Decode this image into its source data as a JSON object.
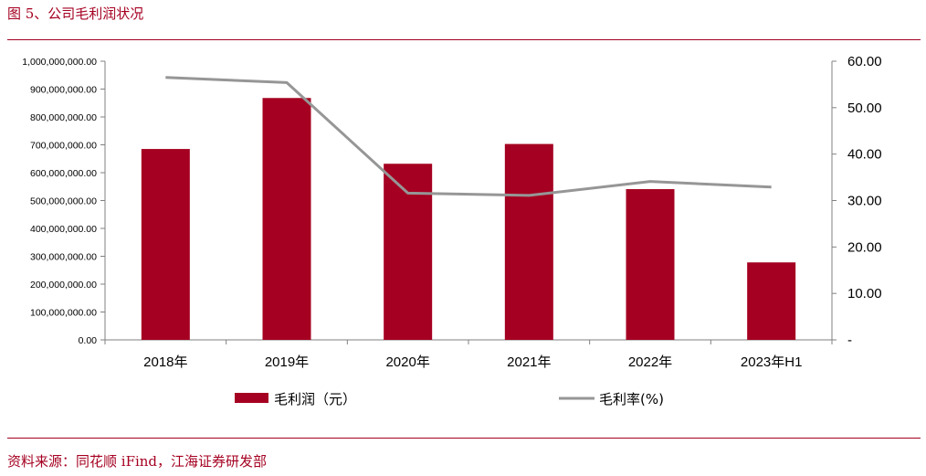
{
  "header": {
    "title": "图 5、公司毛利润状况"
  },
  "footer": {
    "source": "资料来源：同花顺 iFind，江海证券研发部"
  },
  "colors": {
    "bar": "#a50021",
    "line": "#969696",
    "accent": "#a50021",
    "axis": "#808080"
  },
  "chart_data": {
    "type": "bar+line",
    "categories": [
      "2018年",
      "2019年",
      "2020年",
      "2021年",
      "2022年",
      "2023年H1"
    ],
    "series": [
      {
        "name": "毛利润（元）",
        "type": "bar",
        "axis": "left",
        "values": [
          685000000,
          868000000,
          632000000,
          703000000,
          541000000,
          278000000
        ]
      },
      {
        "name": "毛利率(%)",
        "type": "line",
        "axis": "right",
        "values": [
          56.5,
          55.4,
          31.6,
          31.1,
          34.1,
          32.9
        ]
      }
    ],
    "y_left": {
      "ylim": [
        0,
        1000000000
      ],
      "ticks": [
        "0.00",
        "100,000,000.00",
        "200,000,000.00",
        "300,000,000.00",
        "400,000,000.00",
        "500,000,000.00",
        "600,000,000.00",
        "700,000,000.00",
        "800,000,000.00",
        "900,000,000.00",
        "1,000,000,000.00"
      ]
    },
    "y_right": {
      "ylim": [
        0,
        60
      ],
      "ticks": [
        "-",
        "10.00",
        "20.00",
        "30.00",
        "40.00",
        "50.00",
        "60.00"
      ]
    },
    "legend": "bottom",
    "grid": false
  }
}
